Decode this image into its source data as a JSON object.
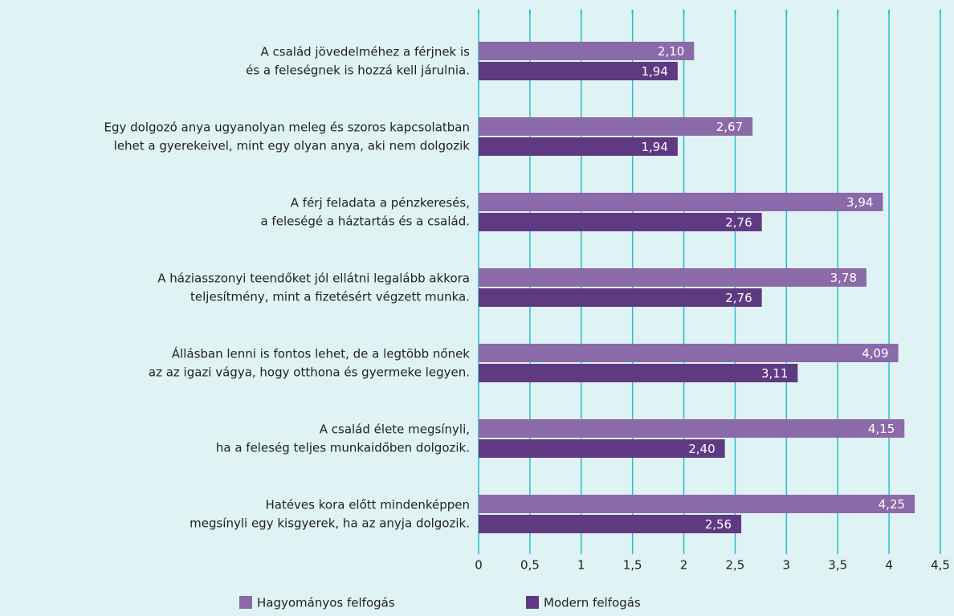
{
  "chart_data": {
    "type": "hbar",
    "categories": [
      [
        "A család jövedelméhez a férjnek is",
        "és a feleségnek is hozzá kell járulnia."
      ],
      [
        "Egy dolgozó anya ugyanolyan meleg és szoros kapcsolatban",
        "lehet a gyerekeivel, mint egy olyan anya, aki nem dolgozik"
      ],
      [
        "A férj feladata a pénzkeresés,",
        "a feleségé a háztartás és a család."
      ],
      [
        "A háziasszonyi teendőket jól ellátni legalább akkora",
        "teljesítmény, mint a fizetésért végzett munka."
      ],
      [
        "Állásban lenni is fontos lehet, de a legtöbb nőnek",
        "az az igazi vágya, hogy otthona és gyermeke legyen."
      ],
      [
        "A család élete megsínyli,",
        "ha a feleség teljes munkaidőben dolgozik."
      ],
      [
        "Hatéves kora előtt mindenképpen",
        "megsínyli egy kisgyerek, ha az anyja dolgozik."
      ]
    ],
    "series": [
      {
        "name": "Hagyományos felfogás",
        "color": "#8b6aa9",
        "values": [
          2.1,
          2.67,
          3.94,
          3.78,
          4.09,
          4.15,
          4.25
        ],
        "value_labels": [
          "2,10",
          "2,67",
          "3,94",
          "3,78",
          "4,09",
          "4,15",
          "4,25"
        ]
      },
      {
        "name": "Modern felfogás",
        "color": "#5f3a82",
        "values": [
          1.94,
          1.94,
          2.76,
          2.76,
          3.11,
          2.4,
          2.56
        ],
        "value_labels": [
          "1,94",
          "1,94",
          "2,76",
          "2,76",
          "3,11",
          "2,40",
          "2,56"
        ]
      }
    ],
    "xlim": [
      0,
      4.5
    ],
    "xticks": [
      0,
      {
        "value": 0.5,
        "label": "0,5"
      },
      1,
      {
        "value": 1.5,
        "label": "1,5"
      },
      2,
      {
        "value": 2.5,
        "label": "2,5"
      },
      3,
      {
        "value": 3.5,
        "label": "3,5"
      },
      4,
      {
        "value": 4.5,
        "label": "4,5"
      }
    ],
    "grid": true,
    "legend": "bottom"
  }
}
